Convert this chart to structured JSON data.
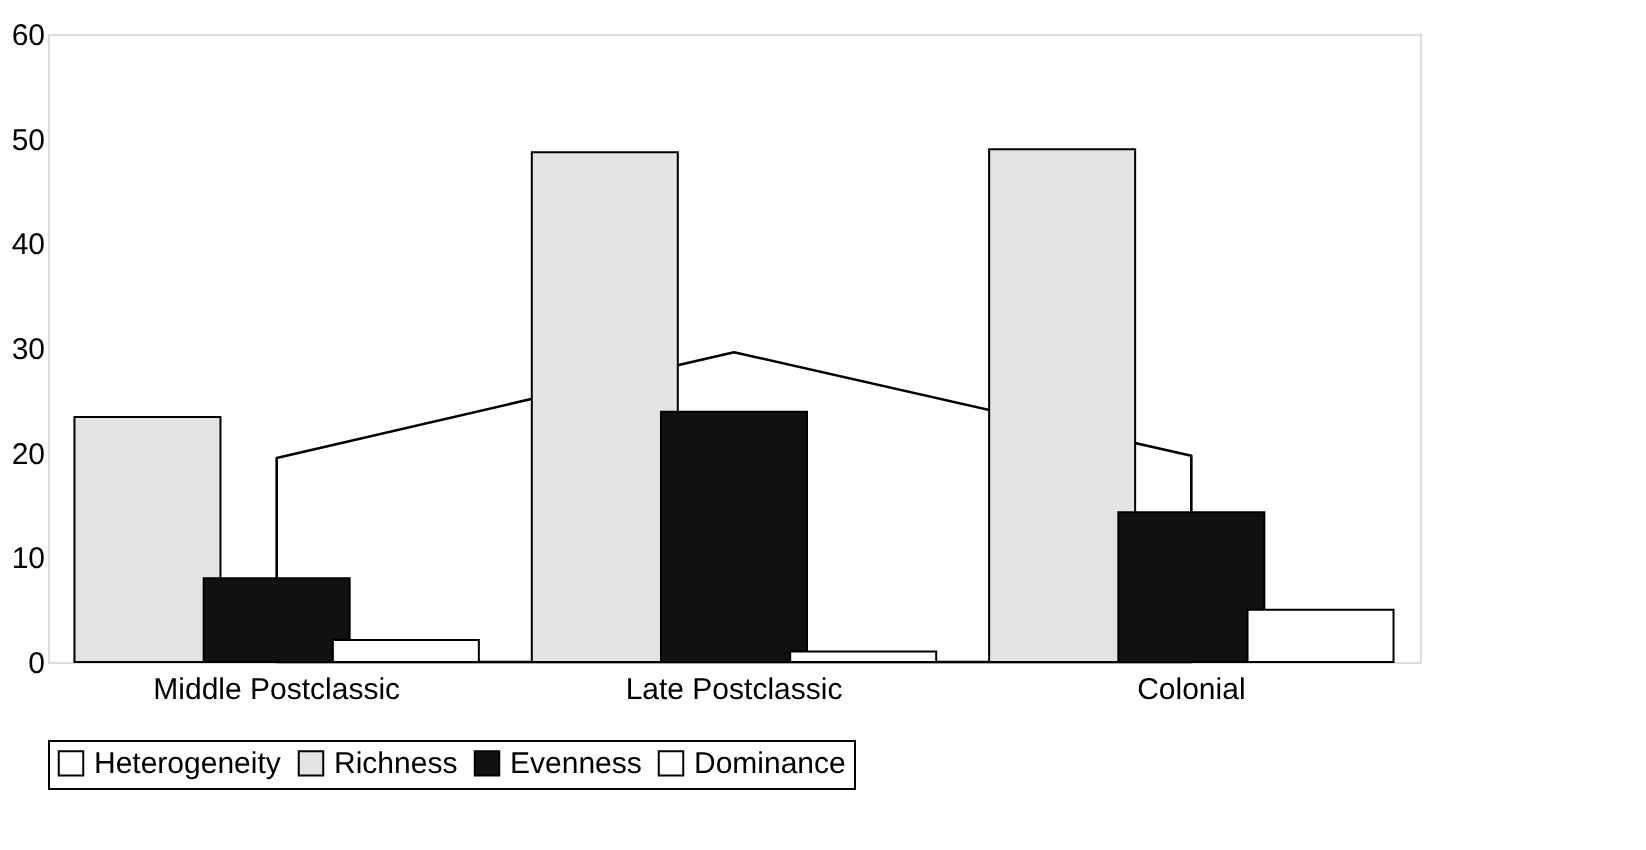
{
  "chart_data": {
    "type": "bar",
    "categories": [
      "Middle Postclassic",
      "Late Postclassic",
      "Colonial"
    ],
    "series": [
      {
        "name": "Heterogeneity",
        "type": "area",
        "color": "#ffffff",
        "values": [
          19.5,
          29.6,
          19.7
        ]
      },
      {
        "name": "Richness",
        "color": "#e3e3e3",
        "values": [
          23.4,
          48.7,
          49.0
        ]
      },
      {
        "name": "Evenness",
        "color": "#111111",
        "values": [
          8.0,
          23.9,
          14.3
        ]
      },
      {
        "name": "Dominance",
        "color": "#ffffff",
        "values": [
          2.1,
          1.0,
          5.0
        ]
      }
    ],
    "ylim": [
      0,
      60
    ],
    "yticks": [
      0,
      10,
      20,
      30,
      40,
      50,
      60
    ],
    "grid": false,
    "legend": "bottom"
  }
}
